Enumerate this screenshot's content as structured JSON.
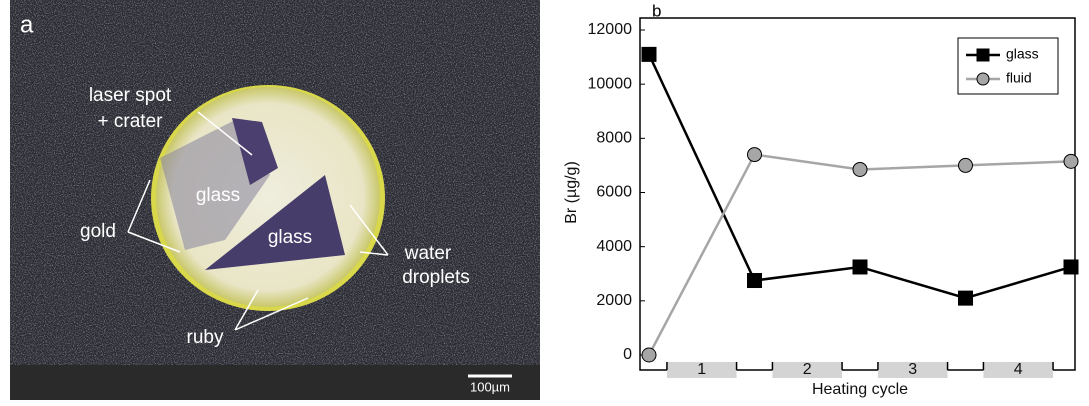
{
  "panel_a": {
    "panel_label": "a",
    "annotations": [
      [
        "laser spot",
        "+ crater"
      ],
      [
        "glass"
      ],
      [
        "glass"
      ],
      [
        "gold"
      ],
      [
        "water",
        "droplets"
      ],
      [
        "ruby"
      ]
    ],
    "scale_bar": "100µm"
  },
  "chart_data": {
    "type": "line",
    "panel_label": "b",
    "x_label": "Heating cycle",
    "y_label": "Br (µg/g)",
    "x": [
      0,
      1,
      2,
      3,
      4
    ],
    "xlim": [
      0,
      4
    ],
    "xticks": [
      {
        "value": 0.5,
        "label": "1"
      },
      {
        "value": 1.5,
        "label": "2"
      },
      {
        "value": 2.5,
        "label": "3"
      },
      {
        "value": 3.5,
        "label": "4"
      }
    ],
    "ylim": [
      0,
      12000
    ],
    "yticks": [
      0,
      2000,
      4000,
      6000,
      8000,
      10000,
      12000
    ],
    "legend": "top-right",
    "series": [
      {
        "name": "glass",
        "color": "#000000",
        "marker": "square",
        "values": [
          11100,
          2750,
          3250,
          2100,
          3250
        ]
      },
      {
        "name": "fluid",
        "color": "#a6a6a6",
        "marker": "circle",
        "values": [
          0,
          7400,
          6850,
          7000,
          7150
        ]
      }
    ]
  }
}
